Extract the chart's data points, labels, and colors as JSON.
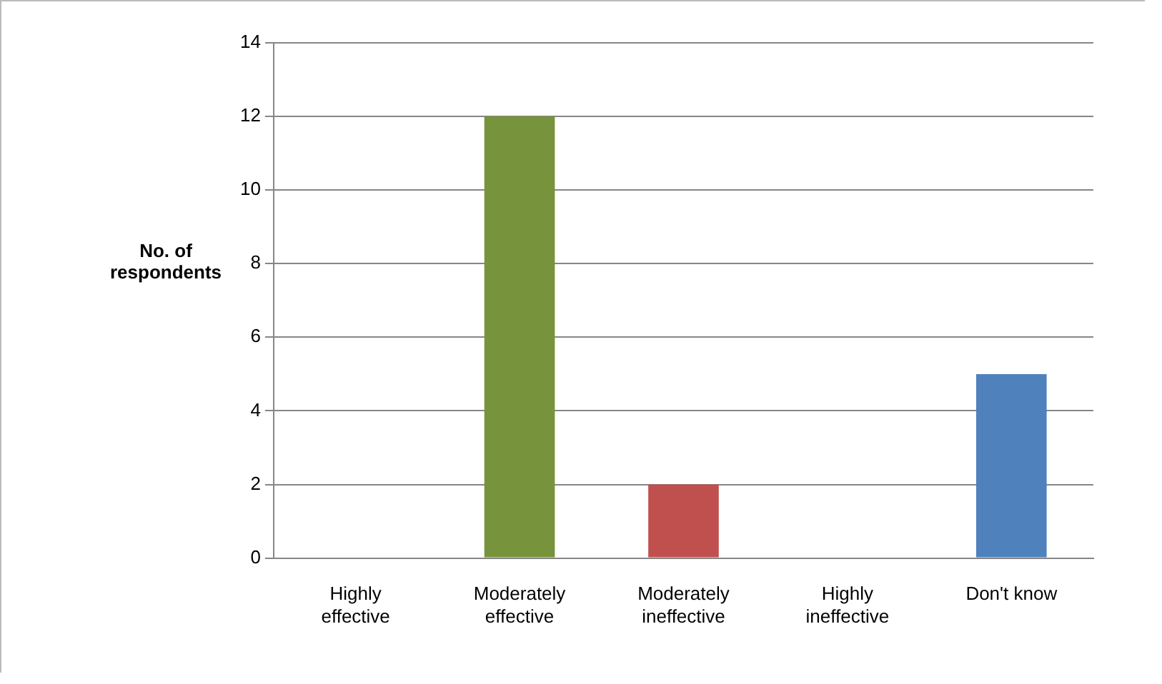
{
  "chart_data": {
    "type": "bar",
    "ylabel": "No. of respondents",
    "categories": [
      "Highly effective",
      "Moderately effective",
      "Moderately ineffective",
      "Highly ineffective",
      "Don't know"
    ],
    "values": [
      0,
      12,
      2,
      0,
      5
    ],
    "colors": [
      "#77933c",
      "#77933c",
      "#c0504d",
      "#4f81bd",
      "#4f81bd"
    ],
    "ylim": [
      0,
      14
    ],
    "yticks": [
      0,
      2,
      4,
      6,
      8,
      10,
      12,
      14
    ],
    "grid": "y",
    "legend": false
  }
}
